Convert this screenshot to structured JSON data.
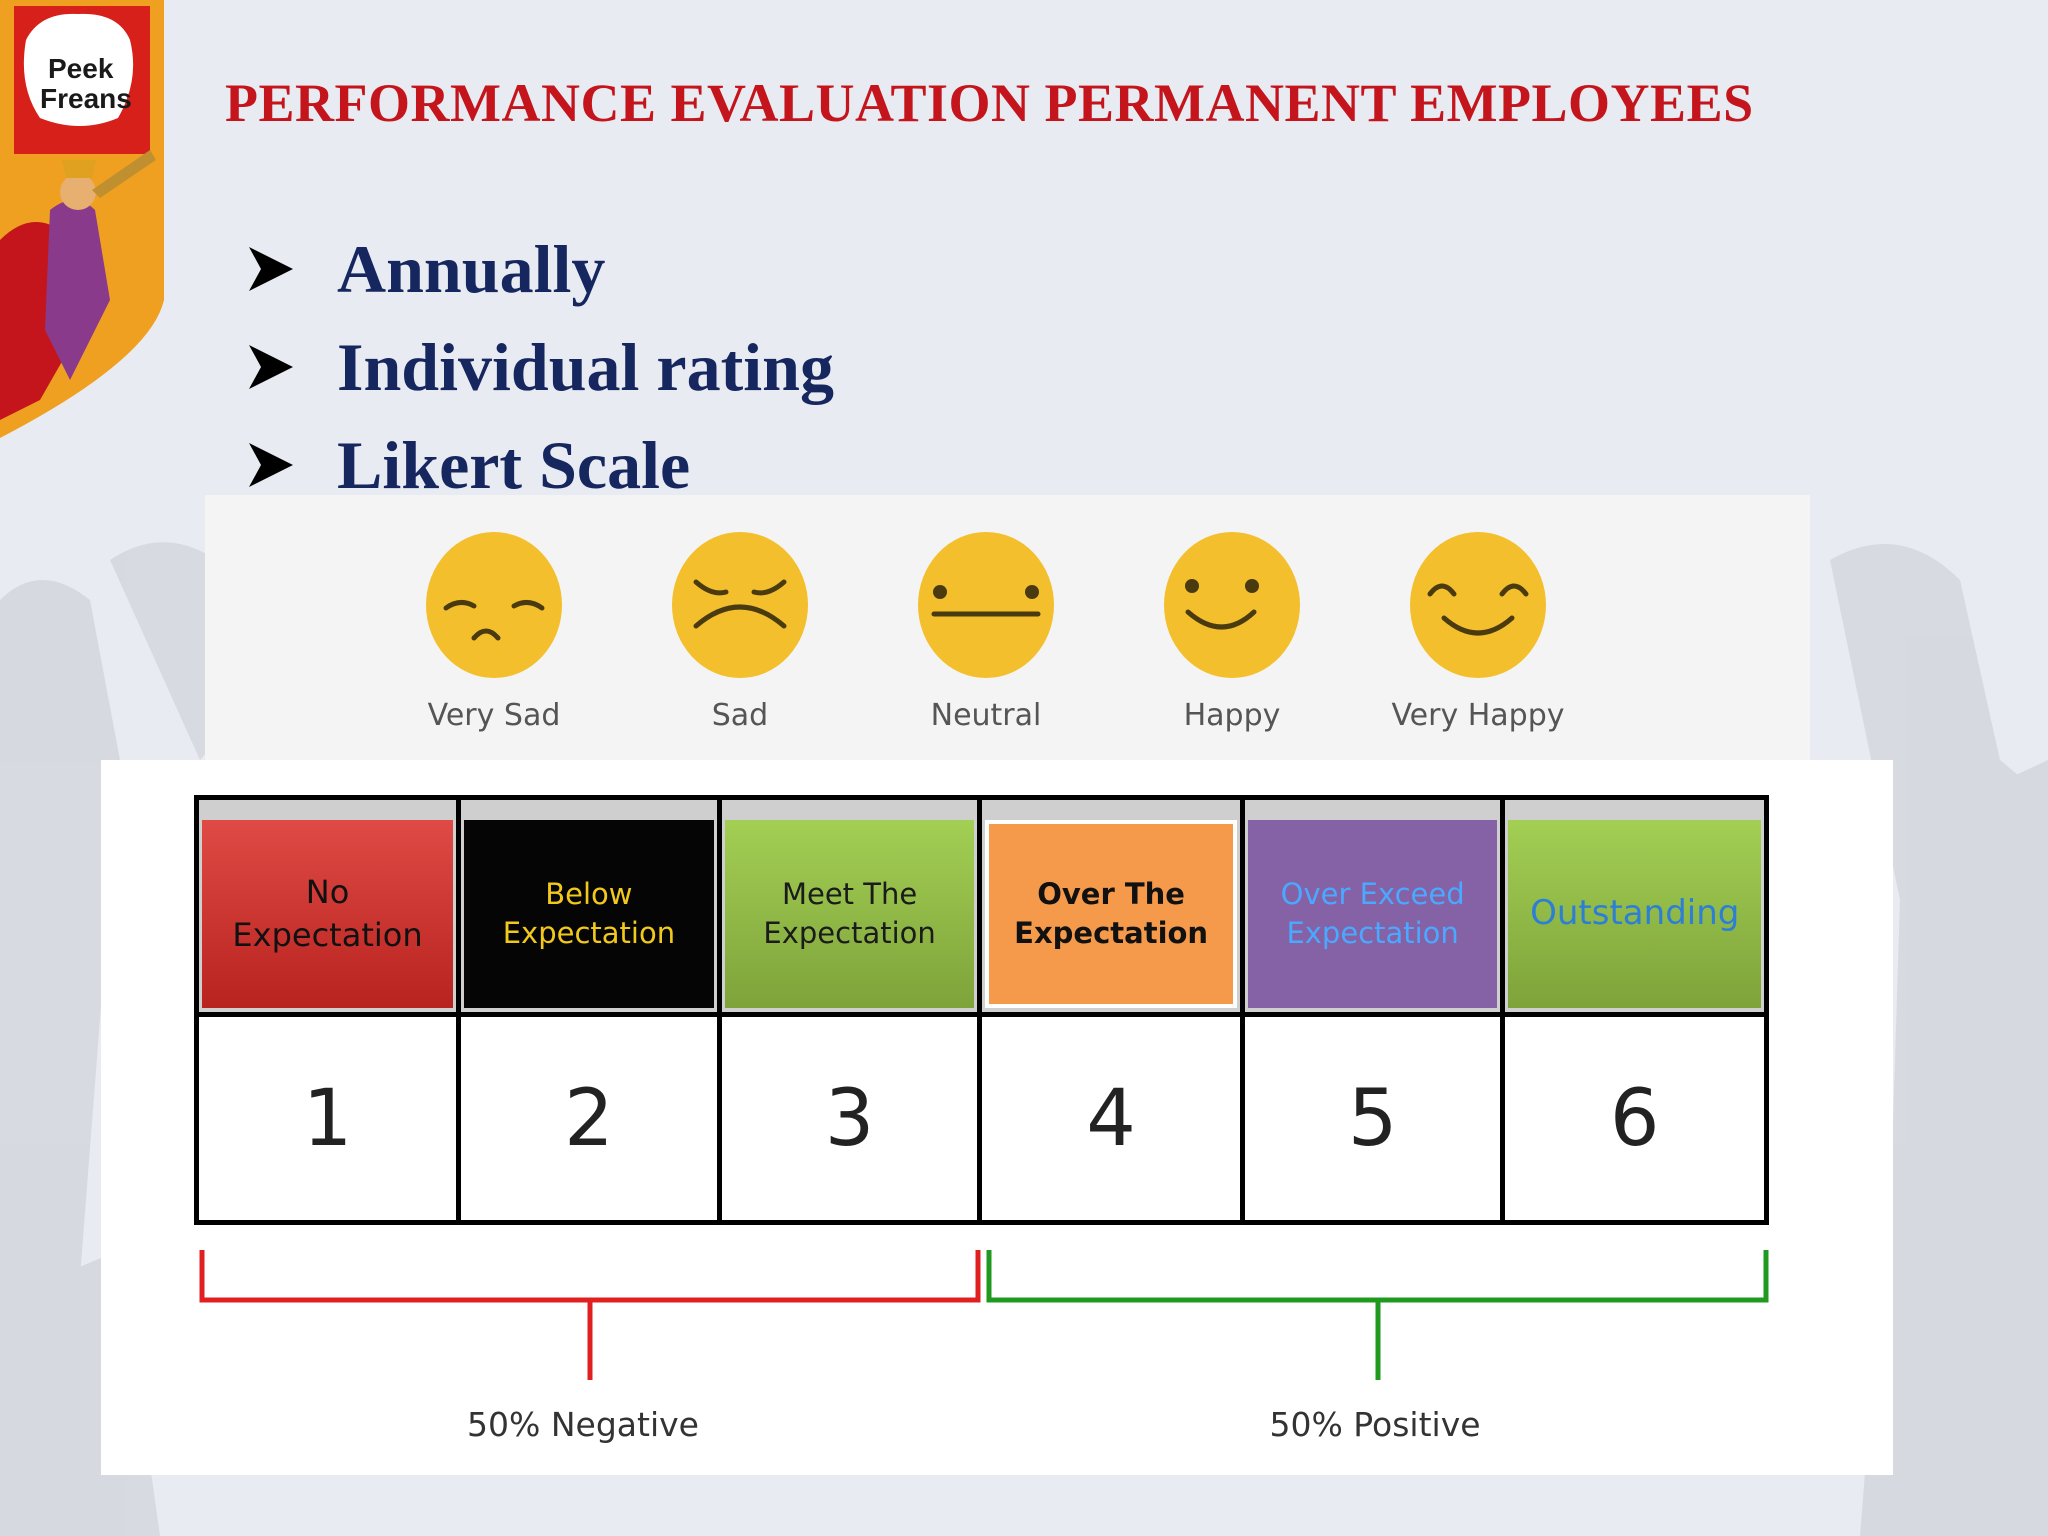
{
  "slide": {
    "title": "PERFORMANCE EVALUATION PERMANENT EMPLOYEES",
    "title_color": "#c4151c",
    "body_color": "#16265e"
  },
  "logo": {
    "brand_line1": "Peek",
    "brand_line2": "Freans",
    "icon": "brand-logo-trumpeter"
  },
  "bullets": [
    {
      "text": "Annually",
      "icon": "arrow-bullet-icon"
    },
    {
      "text": "Individual rating",
      "icon": "arrow-bullet-icon"
    },
    {
      "text": "Likert Scale",
      "icon": "arrow-bullet-icon"
    }
  ],
  "likert_faces": [
    {
      "label": "Very Sad",
      "icon": "very-sad-face-icon"
    },
    {
      "label": "Sad",
      "icon": "sad-face-icon"
    },
    {
      "label": "Neutral",
      "icon": "neutral-face-icon"
    },
    {
      "label": "Happy",
      "icon": "happy-face-icon"
    },
    {
      "label": "Very Happy",
      "icon": "very-happy-face-icon"
    }
  ],
  "rating_scale": [
    {
      "line1": "No",
      "line2": "Expectation",
      "score": "1",
      "color": "#c8302b"
    },
    {
      "line1": "Below",
      "line2": "Expectation",
      "score": "2",
      "color": "#050505"
    },
    {
      "line1": "Meet The",
      "line2": "Expectation",
      "score": "3",
      "color": "#8fb947"
    },
    {
      "line1": "Over The",
      "line2": "Expectation",
      "score": "4",
      "color": "#f5994a"
    },
    {
      "line1": "Over Exceed",
      "line2": "Expectation",
      "score": "5",
      "color": "#8462a5"
    },
    {
      "line1": "Outstanding",
      "line2": "",
      "score": "6",
      "color": "#8fb947"
    }
  ],
  "groups": {
    "negative": {
      "label": "50% Negative",
      "color": "#e02020"
    },
    "positive": {
      "label": "50% Positive",
      "color": "#1f9a1f"
    }
  }
}
